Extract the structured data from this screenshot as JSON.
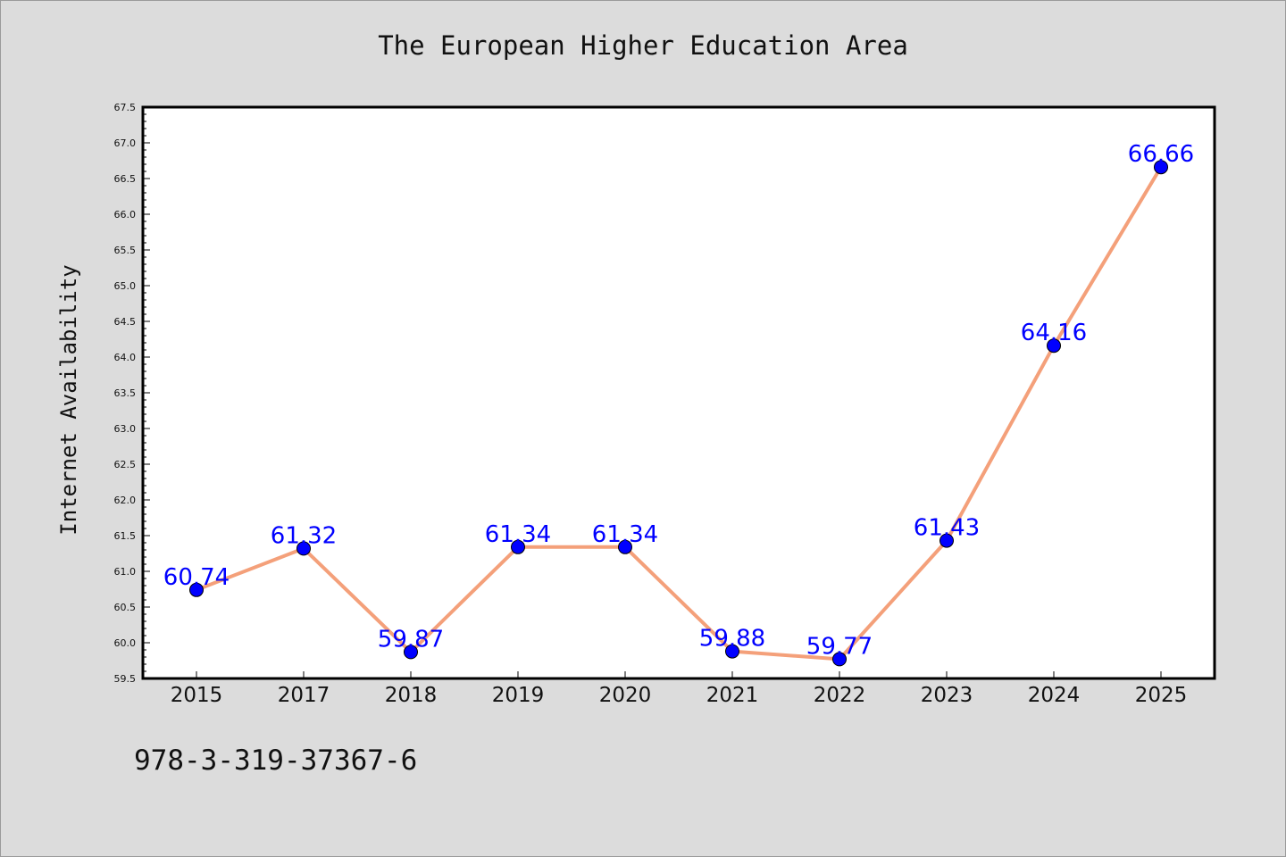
{
  "chart_data": {
    "type": "line",
    "title": "The European Higher Education Area",
    "xlabel": "",
    "ylabel": "Internet Availability",
    "categories": [
      "2015",
      "2017",
      "2018",
      "2019",
      "2020",
      "2021",
      "2022",
      "2023",
      "2024",
      "2025"
    ],
    "series": [
      {
        "values": [
          60.74,
          61.32,
          59.87,
          61.34,
          61.34,
          59.88,
          59.77,
          61.43,
          64.16,
          66.66
        ]
      }
    ],
    "data_labels": [
      "60.74",
      "61.32",
      "59.87",
      "61.34",
      "61.34",
      "59.88",
      "59.77",
      "61.43",
      "64.16",
      "66.66"
    ],
    "ylim": [
      59.5,
      67.5
    ],
    "y_ticks": [
      "59.5",
      "60.0",
      "60.5",
      "61.0",
      "61.5",
      "62.0",
      "62.5",
      "63.0",
      "63.5",
      "64.0",
      "64.5",
      "65.0",
      "65.5",
      "66.0",
      "66.5",
      "67.0",
      "67.5"
    ],
    "grid": false,
    "legend": "none",
    "colors": {
      "line": "#f4a07a",
      "marker": "#0000ff",
      "label": "#0000ff",
      "background": "#dcdcdc",
      "plot_bg": "#ffffff"
    }
  },
  "footer": "978-3-319-37367-6"
}
